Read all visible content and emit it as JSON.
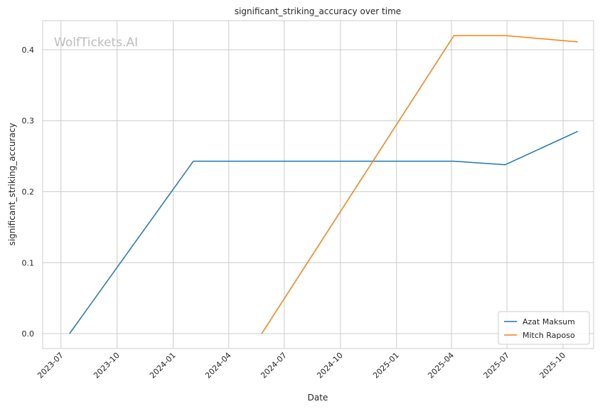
{
  "watermark": "WolfTickets.AI",
  "chart_data": {
    "type": "line",
    "title": "significant_striking_accuracy over time",
    "xlabel": "Date",
    "ylabel": "significant_striking_accuracy",
    "x_ticks": [
      "2023-07",
      "2023-10",
      "2024-01",
      "2024-04",
      "2024-07",
      "2024-10",
      "2025-01",
      "2025-04",
      "2025-07",
      "2025-10"
    ],
    "y_ticks": [
      "0.0",
      "0.1",
      "0.2",
      "0.3",
      "0.4"
    ],
    "xlim": [
      "2023-06-01",
      "2025-11-20"
    ],
    "ylim": [
      -0.021,
      0.441
    ],
    "grid": true,
    "legend_position": "lower-right",
    "series": [
      {
        "name": "Azat Maksum",
        "color": "#1f77b4",
        "points": [
          {
            "x": "2023-07-15",
            "y": 0.0
          },
          {
            "x": "2024-02-03",
            "y": 0.243
          },
          {
            "x": "2025-04-05",
            "y": 0.243
          },
          {
            "x": "2025-06-28",
            "y": 0.238
          },
          {
            "x": "2025-10-25",
            "y": 0.285
          }
        ]
      },
      {
        "name": "Mitch Raposo",
        "color": "#ff7f0e",
        "points": [
          {
            "x": "2024-05-25",
            "y": 0.0
          },
          {
            "x": "2025-04-05",
            "y": 0.42
          },
          {
            "x": "2025-06-28",
            "y": 0.42
          },
          {
            "x": "2025-10-25",
            "y": 0.411
          }
        ]
      }
    ]
  }
}
